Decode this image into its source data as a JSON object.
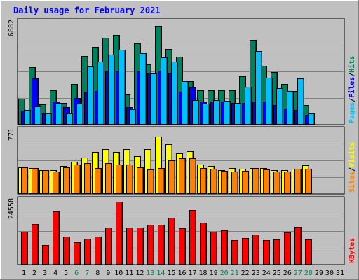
{
  "title": "Daily usage for February 2021",
  "colors": {
    "background": "#c0c0c0",
    "title": "#0000ff",
    "hits": "#00805c",
    "files": "#0000ff",
    "pages": "#00c0ff",
    "visits": "#ffff00",
    "sites": "#ff8000",
    "kbytes": "#ff0000",
    "weekend_label": "#00805c",
    "grid": "#808080"
  },
  "chart_data": [
    {
      "type": "bar",
      "panel": "top",
      "ymax_label": "6882",
      "ylim": [
        0,
        6882
      ],
      "categories": [
        "1",
        "2",
        "3",
        "4",
        "5",
        "6",
        "7",
        "8",
        "9",
        "10",
        "11",
        "12",
        "13",
        "14",
        "15",
        "16",
        "17",
        "18",
        "19",
        "20",
        "21",
        "22",
        "23",
        "24",
        "25",
        "26",
        "27",
        "28",
        "29",
        "30",
        "31"
      ],
      "weekend_days": [
        "6",
        "7",
        "13",
        "14",
        "20",
        "21",
        "27",
        "28"
      ],
      "right_labels": [
        {
          "text": "Hits",
          "color": "#00805c"
        },
        {
          "text": "Files",
          "color": "#0000ff"
        },
        {
          "text": "Pages",
          "color": "#00c0ff"
        }
      ],
      "separator": "/",
      "series": [
        {
          "name": "Hits",
          "values": [
            1760,
            3930,
            1390,
            2350,
            1490,
            2790,
            4730,
            5340,
            5980,
            6150,
            2090,
            5610,
            4160,
            6790,
            5180,
            4650,
            2980,
            2350,
            2350,
            2350,
            2350,
            3300,
            5840,
            4070,
            3590,
            2800,
            2320,
            1340,
            0,
            0,
            0
          ]
        },
        {
          "name": "Files",
          "values": [
            960,
            3160,
            760,
            1610,
            1220,
            1830,
            2280,
            2290,
            3650,
            3650,
            1220,
            3650,
            3560,
            3650,
            3560,
            2280,
            2550,
            1610,
            1610,
            1610,
            1490,
            1490,
            1610,
            1610,
            1340,
            1130,
            1000,
            680,
            0,
            0,
            0
          ]
        },
        {
          "name": "Pages",
          "values": [
            1000,
            1270,
            760,
            1500,
            760,
            1450,
            4000,
            4330,
            4830,
            5160,
            1070,
            4930,
            3540,
            4640,
            4330,
            3000,
            1680,
            1450,
            1680,
            1640,
            1490,
            2580,
            5070,
            3250,
            2490,
            2320,
            3170,
            760,
            0,
            0,
            0
          ]
        }
      ]
    },
    {
      "type": "bar",
      "panel": "middle",
      "ymax_label": "771",
      "ylim": [
        0,
        771
      ],
      "right_labels": [
        {
          "text": "Visits",
          "color": "#ffff00"
        },
        {
          "text": "Sites",
          "color": "#ff8000"
        }
      ],
      "separator": "/",
      "series": [
        {
          "name": "Visits",
          "values": [
            330,
            320,
            295,
            295,
            350,
            400,
            450,
            520,
            560,
            525,
            560,
            470,
            560,
            720,
            620,
            505,
            535,
            370,
            350,
            300,
            320,
            315,
            325,
            320,
            295,
            300,
            310,
            355,
            0,
            0,
            0
          ]
        },
        {
          "name": "Sites",
          "values": [
            330,
            320,
            295,
            280,
            335,
            365,
            385,
            320,
            385,
            365,
            365,
            335,
            305,
            320,
            415,
            445,
            445,
            320,
            310,
            290,
            280,
            290,
            320,
            305,
            275,
            280,
            310,
            310,
            0,
            0,
            0
          ]
        }
      ]
    },
    {
      "type": "bar",
      "panel": "bottom",
      "ymax_label": "24558",
      "ylim": [
        0,
        24558
      ],
      "right_labels": [
        {
          "text": "KBytes",
          "color": "#ff0000"
        }
      ],
      "separator": "",
      "series": [
        {
          "name": "KBytes",
          "values": [
            12800,
            15700,
            7600,
            20800,
            10800,
            8800,
            10200,
            10900,
            14400,
            24558,
            14400,
            14400,
            15400,
            15600,
            18300,
            14100,
            21300,
            16400,
            12800,
            13400,
            9400,
            10400,
            11600,
            9400,
            9900,
            12500,
            14700,
            9900,
            0,
            0,
            0
          ]
        }
      ]
    }
  ]
}
